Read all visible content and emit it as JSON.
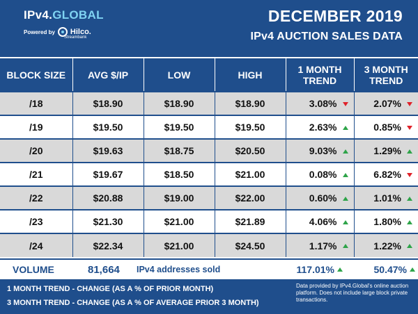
{
  "header": {
    "logo_main": "IPv4.",
    "logo_accent": "GLOBAL",
    "powered_by": "Powered by",
    "hilco": "Hilco.",
    "hilco_sub": "Streambank",
    "title_line1": "DECEMBER 2019",
    "title_line2": "IPv4 AUCTION SALES DATA"
  },
  "table": {
    "headers": [
      "BLOCK SIZE",
      "AVG $/IP",
      "LOW",
      "HIGH",
      "1 MONTH TREND",
      "3 MONTH TREND"
    ],
    "rows": [
      {
        "block": "/18",
        "avg": "$18.90",
        "low": "$18.90",
        "high": "$18.90",
        "m1": "3.08%",
        "m1_dir": "down",
        "m3": "2.07%",
        "m3_dir": "down"
      },
      {
        "block": "/19",
        "avg": "$19.50",
        "low": "$19.50",
        "high": "$19.50",
        "m1": "2.63%",
        "m1_dir": "up",
        "m3": "0.85%",
        "m3_dir": "down"
      },
      {
        "block": "/20",
        "avg": "$19.63",
        "low": "$18.75",
        "high": "$20.50",
        "m1": "9.03%",
        "m1_dir": "up",
        "m3": "1.29%",
        "m3_dir": "up"
      },
      {
        "block": "/21",
        "avg": "$19.67",
        "low": "$18.50",
        "high": "$21.00",
        "m1": "0.08%",
        "m1_dir": "up",
        "m3": "6.82%",
        "m3_dir": "down"
      },
      {
        "block": "/22",
        "avg": "$20.88",
        "low": "$19.00",
        "high": "$22.00",
        "m1": "0.60%",
        "m1_dir": "up",
        "m3": "1.01%",
        "m3_dir": "up"
      },
      {
        "block": "/23",
        "avg": "$21.30",
        "low": "$21.00",
        "high": "$21.89",
        "m1": "4.06%",
        "m1_dir": "up",
        "m3": "1.80%",
        "m3_dir": "up"
      },
      {
        "block": "/24",
        "avg": "$22.34",
        "low": "$21.00",
        "high": "$24.50",
        "m1": "1.17%",
        "m1_dir": "up",
        "m3": "1.22%",
        "m3_dir": "up"
      }
    ]
  },
  "volume": {
    "label": "VOLUME",
    "count": "81,664",
    "text": "IPv4 addresses sold",
    "m1": "117.01%",
    "m1_dir": "up",
    "m3": "50.47%",
    "m3_dir": "up"
  },
  "footer": {
    "line1": "1 MONTH TREND - CHANGE (AS A % OF PRIOR MONTH)",
    "line2": "3 MONTH TREND - CHANGE (AS A % OF AVERAGE PRIOR 3 MONTH)",
    "note": "Data provided by IPv4.Global's online auction platform. Does not include large block private transactions."
  },
  "colors": {
    "brand_blue": "#1f4e8c",
    "accent_cyan": "#7fd3f2",
    "row_shade": "#d9d9d9",
    "trend_up": "#2ea449",
    "trend_down": "#e0222a"
  },
  "icons": {
    "trend_up": "triangle-up-icon",
    "trend_down": "triangle-down-icon",
    "hilco_logo": "hilco-logo-icon"
  }
}
